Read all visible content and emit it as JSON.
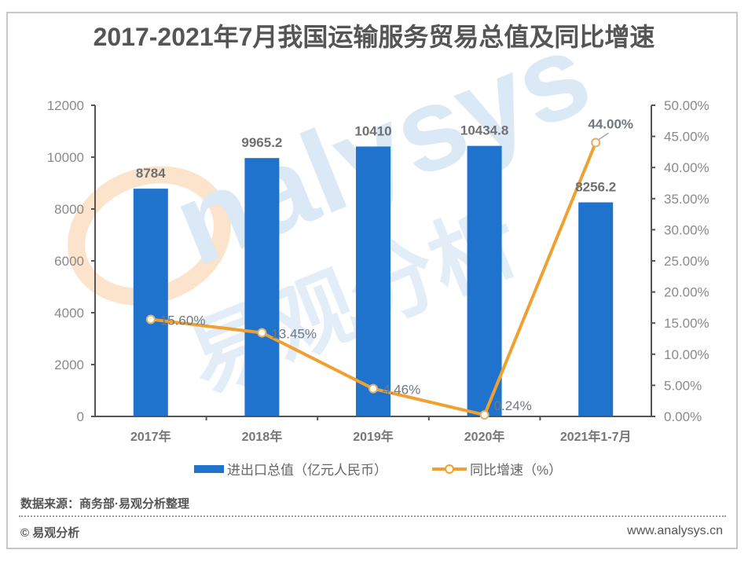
{
  "title": "2017-2021年7月我国运输服务贸易总值及同比增速",
  "colors": {
    "bar": "#1f73cd",
    "line": "#f0a030",
    "axis": "#555555",
    "text": "#666666",
    "watermark_blue": "#dbe9f7",
    "watermark_orange": "#fbe3cc"
  },
  "chart_data": {
    "type": "bar+line",
    "title": "2017-2021年7月我国运输服务贸易总值及同比增速",
    "categories": [
      "2017年",
      "2018年",
      "2019年",
      "2020年",
      "2021年1-7月"
    ],
    "series": [
      {
        "name": "进出口总值（亿元人民币）",
        "type": "bar",
        "axis": "left",
        "values": [
          8784,
          9965.2,
          10410,
          10434.8,
          8256.2
        ],
        "labels": [
          "8784",
          "9965.2",
          "10410",
          "10434.8",
          "8256.2"
        ]
      },
      {
        "name": "同比增速（%）",
        "type": "line",
        "axis": "right",
        "values": [
          15.6,
          13.45,
          4.46,
          0.24,
          44.0
        ],
        "labels": [
          "15.60%",
          "13.45%",
          "4.46%",
          "0.24%",
          "44.00%"
        ]
      }
    ],
    "left_axis": {
      "ylim": [
        0,
        12000
      ],
      "ticks": [
        "0",
        "2000",
        "4000",
        "6000",
        "8000",
        "10000",
        "12000"
      ]
    },
    "right_axis": {
      "ylim": [
        0,
        50
      ],
      "ticks": [
        "0.00%",
        "5.00%",
        "10.00%",
        "15.00%",
        "20.00%",
        "25.00%",
        "30.00%",
        "35.00%",
        "40.00%",
        "45.00%",
        "50.00%"
      ]
    },
    "grid": false,
    "legend_position": "bottom"
  },
  "legend": {
    "bar_label": "进出口总值（亿元人民币）",
    "line_label": "同比增速（%）"
  },
  "footer": {
    "source": "数据来源：商务部·易观分析整理",
    "copyright": "© 易观分析",
    "website": "www.analysys.cn"
  },
  "watermark": {
    "text_en": "analysys",
    "text_cn": "易观分析"
  }
}
